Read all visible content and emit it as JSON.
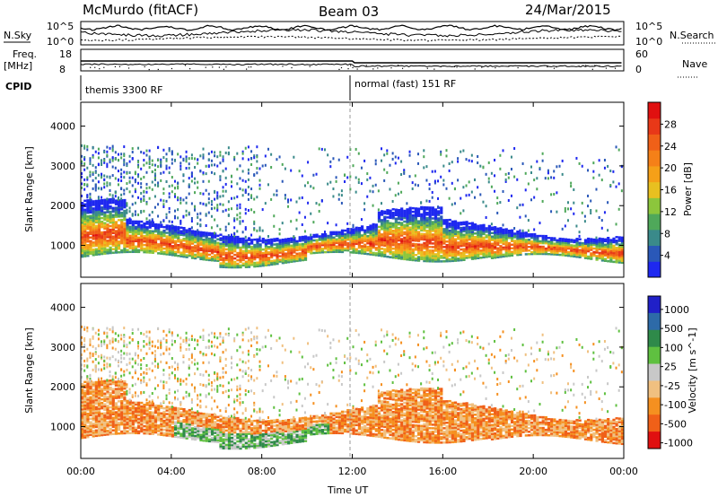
{
  "header": {
    "station": "McMurdo (fitACF)",
    "beam": "Beam 03",
    "date": "24/Mar/2015"
  },
  "noise_panel": {
    "left_label": "N.Sky",
    "right_label": "N.Search",
    "tick_top": "10^5",
    "tick_bottom": "10^0"
  },
  "freq_panel": {
    "left_label_line1": "Freq.",
    "left_label_line2": "[MHz]",
    "left_ticks": [
      "18",
      "8"
    ],
    "right_label": "Nave",
    "right_ticks": [
      "60",
      "0"
    ]
  },
  "cpid_panel": {
    "label": "CPID",
    "segments": [
      {
        "start_hour": 0,
        "text": "themis 3300 RF"
      },
      {
        "start_hour": 12,
        "text": "normal (fast) 151 RF"
      }
    ]
  },
  "chart_data": [
    {
      "type": "heatmap",
      "name": "power",
      "ylabel": "Slant Range [km]",
      "ylim": [
        200,
        4600
      ],
      "yticks": [
        "1000",
        "2000",
        "3000",
        "4000"
      ],
      "xlim": [
        0,
        24
      ],
      "xticks": [
        "00:00",
        "04:00",
        "08:00",
        "12:00",
        "16:00",
        "20:00",
        "00:00"
      ],
      "colorbar": {
        "label": "Power [dB]",
        "ticks": [
          "4",
          "8",
          "12",
          "16",
          "20",
          "24",
          "28"
        ],
        "colors": [
          "#1e28f0",
          "#2a58b8",
          "#3a8a8a",
          "#4fa85a",
          "#8cc63c",
          "#e8c020",
          "#f5a018",
          "#f58018",
          "#f06018",
          "#e83818",
          "#e01010"
        ]
      },
      "echo_band": {
        "lower_km": [
          700,
          800
        ],
        "upper_km": [
          1400,
          1800
        ],
        "peak_power_db": 28
      }
    },
    {
      "type": "heatmap",
      "name": "velocity",
      "ylabel": "Slant Range [km]",
      "ylim": [
        200,
        4600
      ],
      "yticks": [
        "1000",
        "2000",
        "3000",
        "4000"
      ],
      "xlim": [
        0,
        24
      ],
      "xticks": [
        "00:00",
        "04:00",
        "08:00",
        "12:00",
        "16:00",
        "20:00",
        "00:00"
      ],
      "xlabel": "Time UT",
      "colorbar": {
        "label": "Velocity [m s^-1]",
        "ticks": [
          "1000",
          "500",
          "100",
          "25",
          "-25",
          "-100",
          "-500",
          "-1000"
        ],
        "colors": [
          "#2020c8",
          "#2d6aa8",
          "#2f8a4a",
          "#5fc040",
          "#c8c8c8",
          "#f0c080",
          "#f59020",
          "#f06018",
          "#e01010"
        ]
      }
    }
  ]
}
